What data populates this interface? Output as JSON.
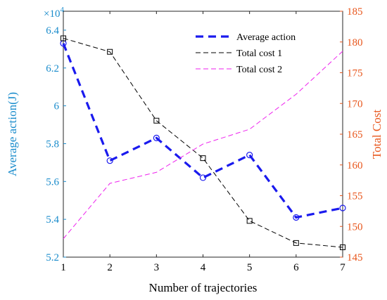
{
  "chart_data": {
    "type": "line",
    "xlabel": "Number of trajectories",
    "y_left_label": "Average action(J)",
    "y_right_label": "Total Cost",
    "y_left_multiplier": "×10",
    "y_left_multiplier_exp": "4",
    "x": [
      1,
      2,
      3,
      4,
      5,
      6,
      7
    ],
    "xlim": [
      1,
      7
    ],
    "x_ticks": [
      "1",
      "2",
      "3",
      "4",
      "5",
      "6",
      "7"
    ],
    "y_left_lim": [
      5.2,
      6.5
    ],
    "y_left_ticks": [
      "5.2",
      "5.4",
      "5.6",
      "5.8",
      "6",
      "6.2",
      "6.4"
    ],
    "y_right_lim": [
      145,
      185
    ],
    "y_right_ticks": [
      "145",
      "150",
      "155",
      "160",
      "165",
      "170",
      "175",
      "180",
      "185"
    ],
    "legend_position": "top-right",
    "grid": false,
    "colors": {
      "left_axis": "#1a8ccc",
      "right_axis": "#e8561c",
      "average_action": "#1a1aee",
      "total_cost_1": "#000000",
      "total_cost_2": "#ee22ee"
    },
    "series": [
      {
        "name": "Average action",
        "axis": "left",
        "marker": "circle",
        "style": "bold-dashed",
        "values": [
          6.33,
          5.71,
          5.83,
          5.62,
          5.74,
          5.41,
          5.46
        ]
      },
      {
        "name": "Total cost 1",
        "axis": "right",
        "marker": "square",
        "style": "dashed",
        "values": [
          180.6,
          178.4,
          167.2,
          161.1,
          150.9,
          147.3,
          146.6
        ]
      },
      {
        "name": "Total cost 2",
        "axis": "right",
        "marker": "none",
        "style": "dashed",
        "values": [
          148.0,
          157.0,
          158.8,
          163.4,
          165.8,
          171.5,
          178.5
        ]
      }
    ]
  }
}
